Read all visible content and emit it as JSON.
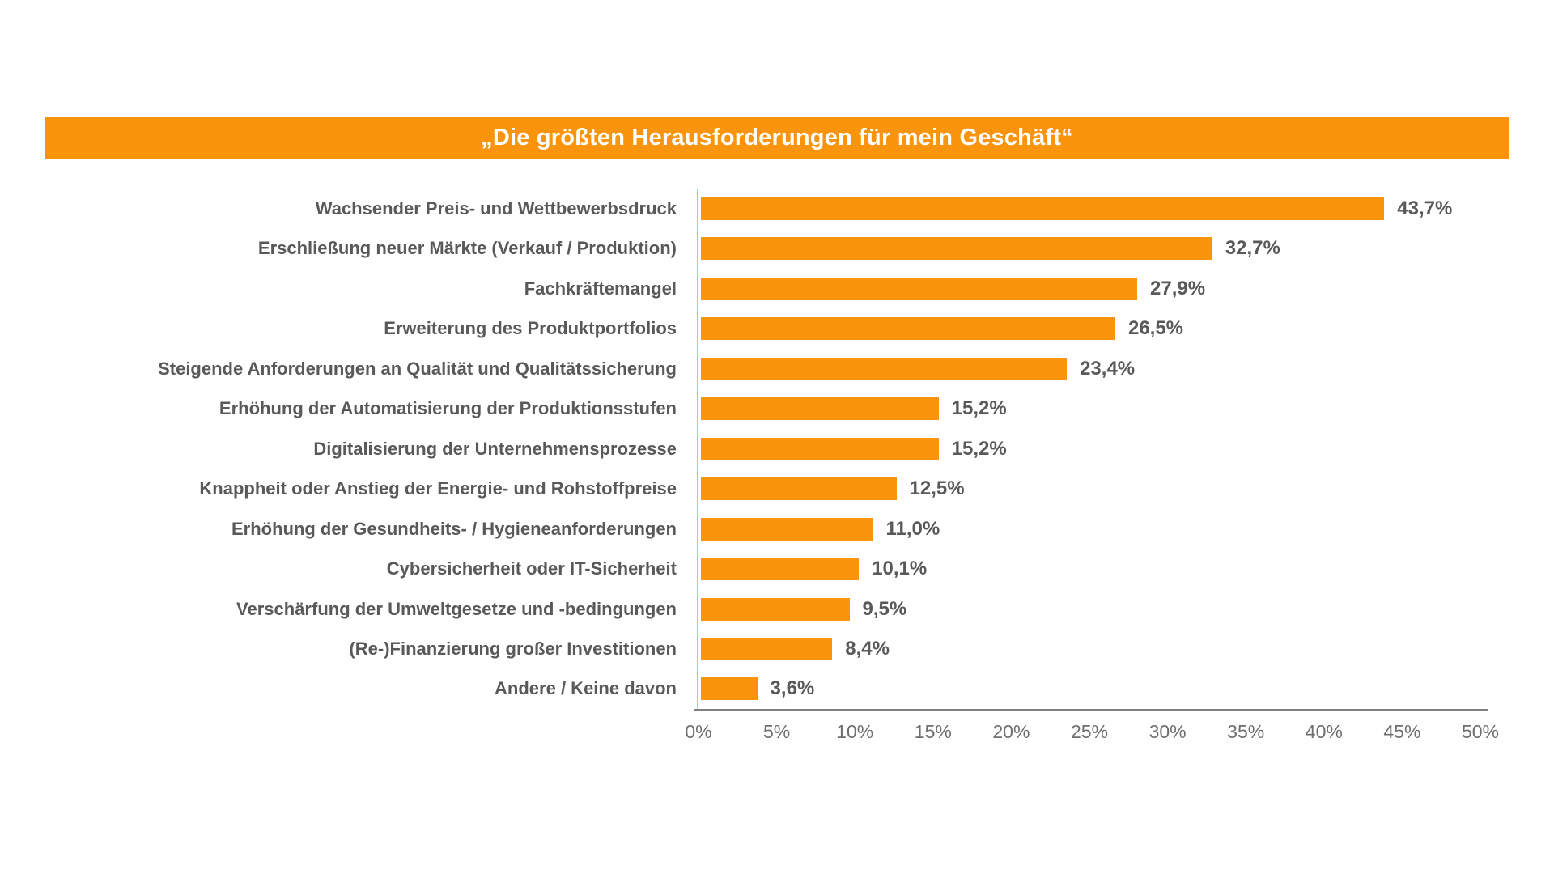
{
  "banner": {
    "title": "„Die größten Herausforderungen für mein Geschäft“"
  },
  "colors": {
    "banner_bg": "#FA940C",
    "bar_fill": "#FA940C",
    "category_text": "#595959",
    "value_text": "#595959",
    "tick_text": "#6E6E6E",
    "y_axis_line": "#A9C7E9",
    "x_axis_line": "#7F7F7F",
    "background": "#FFFFFF"
  },
  "chart_data": {
    "type": "bar",
    "orientation": "horizontal",
    "title": "„Die größten Herausforderungen für mein Geschäft“",
    "xlabel": "",
    "ylabel": "",
    "xlim": [
      0,
      50
    ],
    "grid": false,
    "legend": null,
    "x_tick_labels": [
      "0%",
      "5%",
      "10%",
      "15%",
      "20%",
      "25%",
      "30%",
      "35%",
      "40%",
      "45%",
      "50%"
    ],
    "x_tick_values": [
      0,
      5,
      10,
      15,
      20,
      25,
      30,
      35,
      40,
      45,
      50
    ],
    "categories": [
      "Wachsender Preis- und Wettbewerbsdruck",
      "Erschließung neuer Märkte (Verkauf / Produktion)",
      "Fachkräftemangel",
      "Erweiterung des Produktportfolios",
      "Steigende Anforderungen an Qualität und Qualitätssicherung",
      "Erhöhung der Automatisierung der Produktionsstufen",
      "Digitalisierung der Unternehmensprozesse",
      "Knappheit oder Anstieg der Energie- und Rohstoffpreise",
      "Erhöhung der Gesundheits- / Hygieneanforderungen",
      "Cybersicherheit oder IT-Sicherheit",
      "Verschärfung der Umweltgesetze und -bedingungen",
      "(Re-)Finanzierung großer Investitionen",
      "Andere / Keine davon"
    ],
    "values": [
      43.7,
      32.7,
      27.9,
      26.5,
      23.4,
      15.2,
      15.2,
      12.5,
      11.0,
      10.1,
      9.5,
      8.4,
      3.6
    ],
    "value_labels": [
      "43,7%",
      "32,7%",
      "27,9%",
      "26,5%",
      "23,4%",
      "15,2%",
      "15,2%",
      "12,5%",
      "11,0%",
      "10,1%",
      "9,5%",
      "8,4%",
      "3,6%"
    ]
  }
}
